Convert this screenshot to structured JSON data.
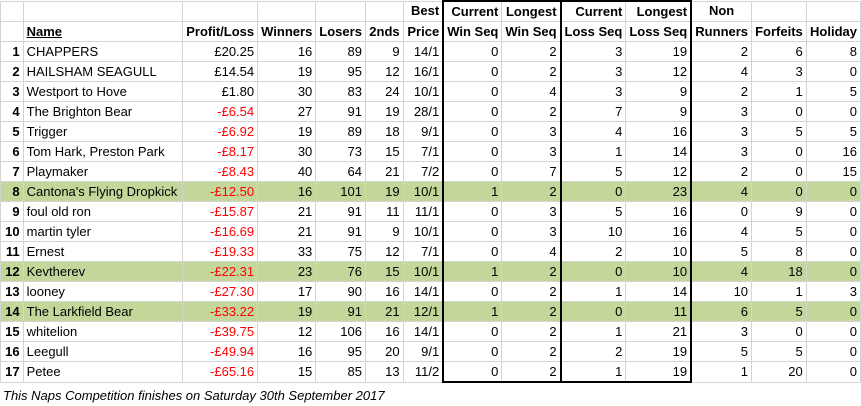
{
  "headers": {
    "name": "Name",
    "profit": "Profit/Loss",
    "winners": "Winners",
    "losers": "Losers",
    "seconds": "2nds",
    "best_1": "Best",
    "best_2": "Price",
    "cur_win_1": "Current",
    "cur_win_2": "Win Seq",
    "long_win_1": "Longest",
    "long_win_2": "Win Seq",
    "cur_loss_1": "Current",
    "cur_loss_2": "Loss Seq",
    "long_loss_1": "Longest",
    "long_loss_2": "Loss Seq",
    "nonrun_1": "Non",
    "nonrun_2": "Runners",
    "forfeits": "Forfeits",
    "holiday": "Holiday"
  },
  "rows": [
    {
      "rank": "1",
      "name": "CHAPPERS",
      "profit": "£20.25",
      "negative": false,
      "winners": "16",
      "losers": "89",
      "seconds": "9",
      "best": "14/1",
      "cur_win": "0",
      "long_win": "2",
      "cur_loss": "3",
      "long_loss": "19",
      "nonrun": "2",
      "forfeits": "6",
      "holiday": "8",
      "highlight": false
    },
    {
      "rank": "2",
      "name": "HAILSHAM SEAGULL",
      "profit": "£14.54",
      "negative": false,
      "winners": "19",
      "losers": "95",
      "seconds": "12",
      "best": "16/1",
      "cur_win": "0",
      "long_win": "2",
      "cur_loss": "3",
      "long_loss": "12",
      "nonrun": "4",
      "forfeits": "3",
      "holiday": "0",
      "highlight": false
    },
    {
      "rank": "3",
      "name": "Westport to Hove",
      "profit": "£1.80",
      "negative": false,
      "winners": "30",
      "losers": "83",
      "seconds": "24",
      "best": "10/1",
      "cur_win": "0",
      "long_win": "4",
      "cur_loss": "3",
      "long_loss": "9",
      "nonrun": "2",
      "forfeits": "1",
      "holiday": "5",
      "highlight": false
    },
    {
      "rank": "4",
      "name": "The Brighton Bear",
      "profit": "-£6.54",
      "negative": true,
      "winners": "27",
      "losers": "91",
      "seconds": "19",
      "best": "28/1",
      "cur_win": "0",
      "long_win": "2",
      "cur_loss": "7",
      "long_loss": "9",
      "nonrun": "3",
      "forfeits": "0",
      "holiday": "0",
      "highlight": false
    },
    {
      "rank": "5",
      "name": "Trigger",
      "profit": "-£6.92",
      "negative": true,
      "winners": "19",
      "losers": "89",
      "seconds": "18",
      "best": "9/1",
      "cur_win": "0",
      "long_win": "3",
      "cur_loss": "4",
      "long_loss": "16",
      "nonrun": "3",
      "forfeits": "5",
      "holiday": "5",
      "highlight": false
    },
    {
      "rank": "6",
      "name": "Tom Hark, Preston Park",
      "profit": "-£8.17",
      "negative": true,
      "winners": "30",
      "losers": "73",
      "seconds": "15",
      "best": "7/1",
      "cur_win": "0",
      "long_win": "3",
      "cur_loss": "1",
      "long_loss": "14",
      "nonrun": "3",
      "forfeits": "0",
      "holiday": "16",
      "highlight": false
    },
    {
      "rank": "7",
      "name": "Playmaker",
      "profit": "-£8.43",
      "negative": true,
      "winners": "40",
      "losers": "64",
      "seconds": "21",
      "best": "7/2",
      "cur_win": "0",
      "long_win": "7",
      "cur_loss": "5",
      "long_loss": "12",
      "nonrun": "2",
      "forfeits": "0",
      "holiday": "15",
      "highlight": false
    },
    {
      "rank": "8",
      "name": "Cantona's Flying Dropkick",
      "profit": "-£12.50",
      "negative": true,
      "winners": "16",
      "losers": "101",
      "seconds": "19",
      "best": "10/1",
      "cur_win": "1",
      "long_win": "2",
      "cur_loss": "0",
      "long_loss": "23",
      "nonrun": "4",
      "forfeits": "0",
      "holiday": "0",
      "highlight": true
    },
    {
      "rank": "9",
      "name": "foul old ron",
      "profit": "-£15.87",
      "negative": true,
      "winners": "21",
      "losers": "91",
      "seconds": "11",
      "best": "11/1",
      "cur_win": "0",
      "long_win": "3",
      "cur_loss": "5",
      "long_loss": "16",
      "nonrun": "0",
      "forfeits": "9",
      "holiday": "0",
      "highlight": false
    },
    {
      "rank": "10",
      "name": "martin tyler",
      "profit": "-£16.69",
      "negative": true,
      "winners": "21",
      "losers": "91",
      "seconds": "9",
      "best": "10/1",
      "cur_win": "0",
      "long_win": "3",
      "cur_loss": "10",
      "long_loss": "16",
      "nonrun": "4",
      "forfeits": "5",
      "holiday": "0",
      "highlight": false
    },
    {
      "rank": "11",
      "name": "Ernest",
      "profit": "-£19.33",
      "negative": true,
      "winners": "33",
      "losers": "75",
      "seconds": "12",
      "best": "7/1",
      "cur_win": "0",
      "long_win": "4",
      "cur_loss": "2",
      "long_loss": "10",
      "nonrun": "5",
      "forfeits": "8",
      "holiday": "0",
      "highlight": false
    },
    {
      "rank": "12",
      "name": "Kevtherev",
      "profit": "-£22.31",
      "negative": true,
      "winners": "23",
      "losers": "76",
      "seconds": "15",
      "best": "10/1",
      "cur_win": "1",
      "long_win": "2",
      "cur_loss": "0",
      "long_loss": "10",
      "nonrun": "4",
      "forfeits": "18",
      "holiday": "0",
      "highlight": true
    },
    {
      "rank": "13",
      "name": "looney",
      "profit": "-£27.30",
      "negative": true,
      "winners": "17",
      "losers": "90",
      "seconds": "16",
      "best": "14/1",
      "cur_win": "0",
      "long_win": "2",
      "cur_loss": "1",
      "long_loss": "14",
      "nonrun": "10",
      "forfeits": "1",
      "holiday": "3",
      "highlight": false
    },
    {
      "rank": "14",
      "name": "The Larkfield Bear",
      "profit": "-£33.22",
      "negative": true,
      "winners": "19",
      "losers": "91",
      "seconds": "21",
      "best": "12/1",
      "cur_win": "1",
      "long_win": "2",
      "cur_loss": "0",
      "long_loss": "11",
      "nonrun": "6",
      "forfeits": "5",
      "holiday": "0",
      "highlight": true
    },
    {
      "rank": "15",
      "name": "whitelion",
      "profit": "-£39.75",
      "negative": true,
      "winners": "12",
      "losers": "106",
      "seconds": "16",
      "best": "14/1",
      "cur_win": "0",
      "long_win": "2",
      "cur_loss": "1",
      "long_loss": "21",
      "nonrun": "3",
      "forfeits": "0",
      "holiday": "0",
      "highlight": false
    },
    {
      "rank": "16",
      "name": "Leegull",
      "profit": "-£49.94",
      "negative": true,
      "winners": "16",
      "losers": "95",
      "seconds": "20",
      "best": "9/1",
      "cur_win": "0",
      "long_win": "2",
      "cur_loss": "2",
      "long_loss": "19",
      "nonrun": "5",
      "forfeits": "5",
      "holiday": "0",
      "highlight": false
    },
    {
      "rank": "17",
      "name": "Petee",
      "profit": "-£65.16",
      "negative": true,
      "winners": "15",
      "losers": "85",
      "seconds": "13",
      "best": "11/2",
      "cur_win": "0",
      "long_win": "2",
      "cur_loss": "1",
      "long_loss": "19",
      "nonrun": "1",
      "forfeits": "20",
      "holiday": "0",
      "highlight": false
    }
  ],
  "footer": "This Naps Competition finishes on Saturday 30th September 2017"
}
